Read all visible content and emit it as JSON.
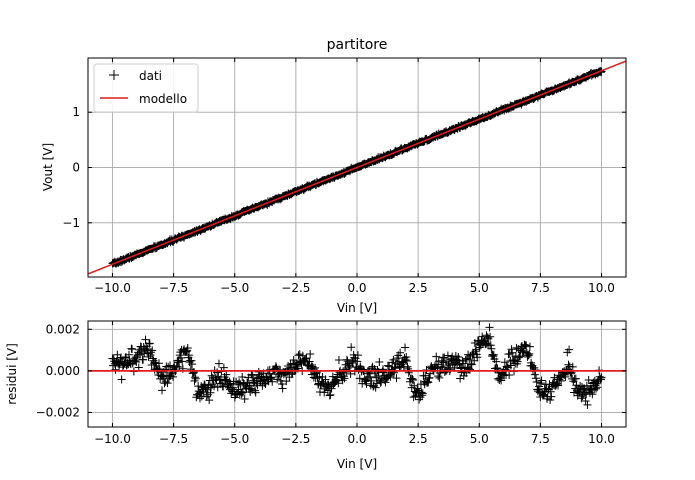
{
  "chart_data": [
    {
      "type": "scatter",
      "title": "partitore",
      "xlabel": "Vin [V]",
      "ylabel": "Vout [V]",
      "xlim": [
        -11,
        11
      ],
      "ylim": [
        -1.98,
        1.98
      ],
      "xticks": [
        -10.0,
        -7.5,
        -5.0,
        -2.5,
        0.0,
        2.5,
        5.0,
        7.5,
        10.0
      ],
      "xtick_labels": [
        "−10.0",
        "−7.5",
        "−5.0",
        "−2.5",
        "0.0",
        "2.5",
        "5.0",
        "7.5",
        "10.0"
      ],
      "yticks": [
        -1,
        0,
        1
      ],
      "ytick_labels": [
        "−1",
        "0",
        "1"
      ],
      "grid": true,
      "legend": {
        "position": "top-left",
        "entries": [
          "dati",
          "modello"
        ]
      },
      "series": [
        {
          "name": "dati",
          "kind": "points",
          "marker": "+",
          "color": "#000000",
          "x_range": [
            -10,
            10
          ],
          "n_points": 800,
          "relation": "Vout = 0.1749 * Vin + residuo"
        },
        {
          "name": "modello",
          "kind": "line",
          "color": "#e41a1c",
          "slope": 0.1749,
          "intercept": 0.0
        }
      ]
    },
    {
      "type": "scatter",
      "title": "",
      "xlabel": "Vin [V]",
      "ylabel": "residui [V]",
      "xlim": [
        -11,
        11
      ],
      "ylim": [
        -0.0027,
        0.0024
      ],
      "xticks": [
        -10.0,
        -7.5,
        -5.0,
        -2.5,
        0.0,
        2.5,
        5.0,
        7.5,
        10.0
      ],
      "xtick_labels": [
        "−10.0",
        "−7.5",
        "−5.0",
        "−2.5",
        "0.0",
        "2.5",
        "5.0",
        "7.5",
        "10.0"
      ],
      "yticks": [
        -0.002,
        0.0,
        0.002
      ],
      "ytick_labels": [
        "−0.002",
        "0.000",
        "0.002"
      ],
      "grid": true,
      "reference_line": {
        "y": 0.0,
        "color": "#e41a1c"
      },
      "series": [
        {
          "name": "",
          "kind": "points",
          "marker": "+",
          "color": "#000000",
          "x_range": [
            -10,
            10
          ],
          "n_points": 800,
          "clusters": [
            {
              "x": -9.9,
              "mean": 0.0002
            },
            {
              "x": -9.5,
              "mean": 0.0004
            },
            {
              "x": -9.0,
              "mean": 0.0006
            },
            {
              "x": -8.6,
              "mean": 0.0012
            },
            {
              "x": -8.3,
              "mean": 0.0005
            },
            {
              "x": -8.0,
              "mean": -0.0003
            },
            {
              "x": -7.6,
              "mean": -0.0001
            },
            {
              "x": -7.2,
              "mean": 0.0006
            },
            {
              "x": -6.9,
              "mean": 0.0009
            },
            {
              "x": -6.5,
              "mean": -0.0012
            },
            {
              "x": -6.0,
              "mean": -0.0007
            },
            {
              "x": -5.5,
              "mean": -0.0002
            },
            {
              "x": -5.0,
              "mean": -0.0011
            },
            {
              "x": -4.5,
              "mean": -0.0008
            },
            {
              "x": -4.0,
              "mean": -0.0004
            },
            {
              "x": -3.5,
              "mean": -0.0001
            },
            {
              "x": -3.0,
              "mean": -0.0003
            },
            {
              "x": -2.5,
              "mean": 0.0004
            },
            {
              "x": -2.0,
              "mean": 0.0007
            },
            {
              "x": -1.5,
              "mean": -0.0006
            },
            {
              "x": -1.1,
              "mean": -0.001
            },
            {
              "x": -0.6,
              "mean": 0.0001
            },
            {
              "x": 0.0,
              "mean": 0.0002
            },
            {
              "x": 0.5,
              "mean": -0.0003
            },
            {
              "x": 1.0,
              "mean": -0.0002
            },
            {
              "x": 1.5,
              "mean": 0.0002
            },
            {
              "x": 2.0,
              "mean": 0.0006
            },
            {
              "x": 2.4,
              "mean": -0.0012
            },
            {
              "x": 3.0,
              "mean": -0.0002
            },
            {
              "x": 3.5,
              "mean": 0.0003
            },
            {
              "x": 4.0,
              "mean": 0.0005
            },
            {
              "x": 4.5,
              "mean": 0.0002
            },
            {
              "x": 5.0,
              "mean": 0.0012
            },
            {
              "x": 5.4,
              "mean": 0.0016
            },
            {
              "x": 5.8,
              "mean": -0.0004
            },
            {
              "x": 6.2,
              "mean": 0.0003
            },
            {
              "x": 6.6,
              "mean": 0.0008
            },
            {
              "x": 7.0,
              "mean": 0.0011
            },
            {
              "x": 7.4,
              "mean": -0.0008
            },
            {
              "x": 7.9,
              "mean": -0.001
            },
            {
              "x": 8.3,
              "mean": -0.0003
            },
            {
              "x": 8.7,
              "mean": 0.0002
            },
            {
              "x": 9.1,
              "mean": -0.0012
            },
            {
              "x": 9.5,
              "mean": -0.0009
            },
            {
              "x": 9.9,
              "mean": -0.0004
            }
          ]
        }
      ]
    }
  ]
}
